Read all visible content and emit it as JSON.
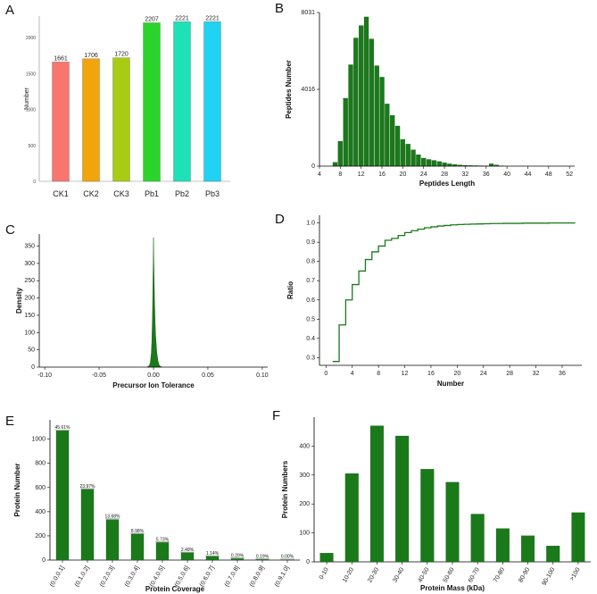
{
  "chart_data": [
    {
      "panel": "A",
      "type": "bar",
      "categories": [
        "CK1",
        "CK2",
        "CK3",
        "Pb1",
        "Pb2",
        "Pb3"
      ],
      "values": [
        1661,
        1706,
        1720,
        2207,
        2221,
        2221
      ],
      "colors": [
        "#f8766d",
        "#f2a40c",
        "#a8cc14",
        "#2bd42b",
        "#1fe1b8",
        "#22d2f2"
      ],
      "ylabel": "Number",
      "yticks": [
        0,
        500,
        1000,
        1500,
        2000
      ],
      "ylim": [
        0,
        2300
      ]
    },
    {
      "panel": "B",
      "type": "bar",
      "xlabel": "Peptides Length",
      "ylabel": "Peptides Number",
      "xticks": [
        4,
        8,
        12,
        16,
        20,
        24,
        28,
        32,
        36,
        40,
        44,
        48,
        52
      ],
      "yticks": [
        0,
        4016,
        8031
      ],
      "xlim": [
        4,
        53
      ],
      "ylim": [
        0,
        8031
      ],
      "x": [
        7,
        8,
        9,
        10,
        11,
        12,
        13,
        14,
        15,
        16,
        17,
        18,
        19,
        20,
        21,
        22,
        23,
        24,
        25,
        26,
        27,
        28,
        29,
        30,
        31,
        32,
        33,
        34,
        35,
        36,
        37,
        38,
        39
      ],
      "values": [
        200,
        1300,
        3550,
        5300,
        6700,
        7350,
        7800,
        6650,
        5250,
        4650,
        3250,
        2650,
        2100,
        1400,
        1150,
        850,
        600,
        420,
        350,
        300,
        240,
        180,
        120,
        90,
        60,
        40,
        30,
        25,
        20,
        15,
        120,
        60,
        10
      ]
    },
    {
      "panel": "C",
      "type": "area",
      "xlabel": "Precursor Ion Tolerance",
      "ylabel": "Density",
      "xticks": [
        -0.1,
        -0.05,
        0.0,
        0.05,
        0.1
      ],
      "xtick_labels": [
        "-0.10",
        "-0.05",
        "0.00",
        "0.05",
        "0.10"
      ],
      "yticks": [
        0,
        50,
        100,
        150,
        200,
        250,
        300,
        350
      ],
      "xlim": [
        -0.105,
        0.105
      ],
      "ylim": [
        0,
        385
      ],
      "x": [
        -0.006,
        -0.004,
        -0.003,
        -0.002,
        -0.0015,
        -0.001,
        -0.0005,
        0.0,
        0.0005,
        0.001,
        0.0015,
        0.002,
        0.003,
        0.004,
        0.005,
        0.006,
        0.008
      ],
      "y": [
        0,
        4,
        12,
        40,
        75,
        140,
        240,
        375,
        270,
        190,
        130,
        90,
        45,
        20,
        8,
        3,
        0
      ]
    },
    {
      "panel": "D",
      "type": "line",
      "xlabel": "Number",
      "ylabel": "Ratio",
      "xticks": [
        0,
        4,
        8,
        12,
        16,
        20,
        24,
        28,
        32,
        36
      ],
      "yticks": [
        0.3,
        0.4,
        0.5,
        0.6,
        0.7,
        0.8,
        0.9,
        1.0
      ],
      "ytick_labels": [
        "0.3",
        "0.4",
        "0.5",
        "0.6",
        "0.7",
        "0.8",
        "0.9",
        "1.0"
      ],
      "xlim": [
        -1,
        39
      ],
      "ylim": [
        0.26,
        1.04
      ],
      "x": [
        1,
        2,
        3,
        4,
        5,
        6,
        7,
        8,
        9,
        10,
        11,
        12,
        13,
        14,
        15,
        16,
        17,
        18,
        19,
        20,
        21,
        22,
        23,
        24,
        25,
        26,
        27,
        28,
        29,
        30,
        31,
        32,
        33,
        34,
        35,
        36,
        37,
        38
      ],
      "y": [
        0.28,
        0.47,
        0.6,
        0.68,
        0.75,
        0.81,
        0.85,
        0.88,
        0.91,
        0.92,
        0.935,
        0.95,
        0.96,
        0.968,
        0.975,
        0.98,
        0.984,
        0.987,
        0.99,
        0.992,
        0.993,
        0.994,
        0.995,
        0.996,
        0.997,
        0.997,
        0.998,
        0.998,
        0.998,
        0.999,
        0.999,
        0.999,
        0.999,
        1.0,
        1.0,
        1.0,
        1.0,
        1.0
      ]
    },
    {
      "panel": "E",
      "type": "bar",
      "xlabel": "Protein Coverage",
      "ylabel": "Protein Number",
      "categories": [
        "(0.0,0.1]",
        "(0.1,0.2]",
        "(0.2,0.3]",
        "(0.3,0.4]",
        "(0.4,0.5]",
        "(0.5,0.6]",
        "(0.6,0.7]",
        "(0.7,0.8]",
        "(0.8,0.9]",
        "(0.9,1.0]"
      ],
      "values": [
        1070,
        585,
        335,
        215,
        145,
        60,
        30,
        12,
        5,
        2
      ],
      "data_labels": [
        "45.61%",
        "23.97%",
        "13.68%",
        "8.98%",
        "5.73%",
        "2.49%",
        "1.14%",
        "0.20%",
        "0.19%",
        "0.00%"
      ],
      "yticks": [
        0,
        200,
        400,
        600,
        800,
        1000
      ],
      "ylim": [
        0,
        1160
      ]
    },
    {
      "panel": "F",
      "type": "bar",
      "xlabel": "Protein Mass (kDa)",
      "ylabel": "Protein Numbers",
      "categories": [
        "0-10",
        "10-20",
        "20-30",
        "30-40",
        "40-50",
        "50-60",
        "60-70",
        "70-80",
        "80-90",
        "90-100",
        ">100"
      ],
      "values": [
        30,
        305,
        470,
        435,
        320,
        275,
        165,
        115,
        90,
        55,
        170
      ],
      "yticks": [
        0,
        100,
        200,
        300,
        400
      ],
      "ylim": [
        0,
        500
      ]
    }
  ],
  "panels": {
    "A": "A",
    "B": "B",
    "C": "C",
    "D": "D",
    "E": "E",
    "F": "F"
  },
  "colors": {
    "green": "#1a7a1a",
    "green_edge": "#0d4d0d"
  }
}
